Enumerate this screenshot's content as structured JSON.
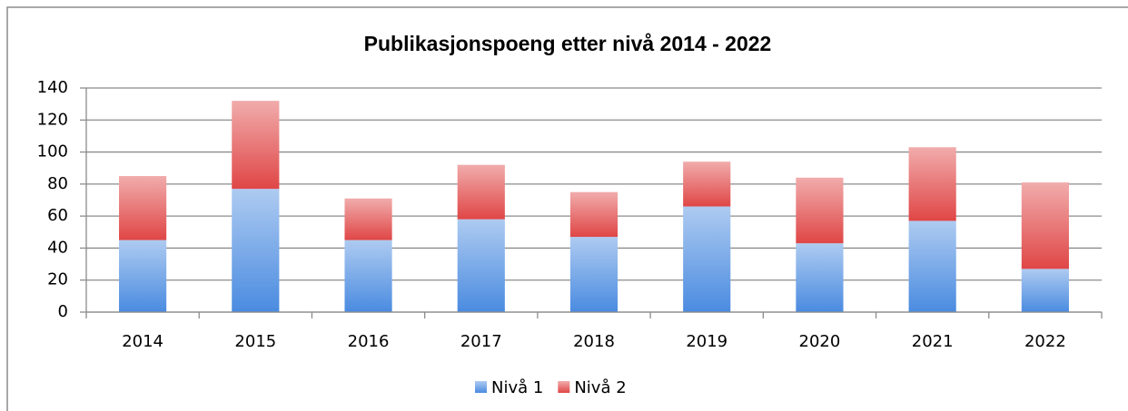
{
  "chart_data": {
    "type": "stacked_bar",
    "title": "Publikasjonspoeng  etter nivå 2014 - 2022",
    "categories": [
      "2014",
      "2015",
      "2016",
      "2017",
      "2018",
      "2019",
      "2020",
      "2021",
      "2022"
    ],
    "series": [
      {
        "name": "Nivå 1",
        "color": "#4a8be0",
        "values": [
          45,
          77,
          45,
          58,
          47,
          66,
          43,
          57,
          27
        ]
      },
      {
        "name": "Nivå 2",
        "color": "#e04646",
        "values": [
          40,
          55,
          26,
          34,
          28,
          28,
          41,
          46,
          54
        ]
      }
    ],
    "ylim": [
      0,
      140
    ],
    "yticks": [
      0,
      20,
      40,
      60,
      80,
      100,
      120,
      140
    ],
    "grid": true,
    "legend": "bottom"
  }
}
